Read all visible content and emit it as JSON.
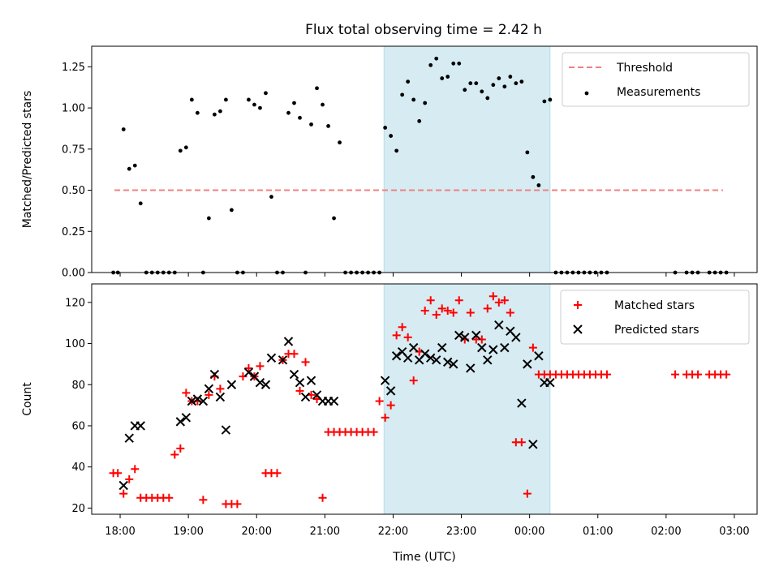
{
  "chart_data": [
    {
      "type": "scatter",
      "title": "Flux total observing time = 2.42 h",
      "xlabel": "",
      "ylabel": "Matched/Predicted stars",
      "xlim": [
        "17:35",
        "03:20"
      ],
      "ylim": [
        0,
        1.375
      ],
      "yticks": [
        "0.00",
        "0.25",
        "0.50",
        "0.75",
        "1.00",
        "1.25"
      ],
      "highlight_span": {
        "from": "21:52",
        "to": "00:18",
        "color": "#add8e6"
      },
      "legend_position": "upper right",
      "series": [
        {
          "name": "Threshold",
          "style": "dashed-line",
          "color": "#f08080",
          "x": [
            "17:55",
            "02:50"
          ],
          "y": [
            0.5,
            0.5
          ]
        },
        {
          "name": "Measurements",
          "style": "dot",
          "color": "#000000",
          "x": [
            "17:54",
            "17:58",
            "18:03",
            "18:08",
            "18:13",
            "18:18",
            "18:23",
            "18:28",
            "18:33",
            "18:38",
            "18:43",
            "18:48",
            "18:53",
            "18:58",
            "19:03",
            "19:08",
            "19:13",
            "19:18",
            "19:23",
            "19:28",
            "19:33",
            "19:38",
            "19:43",
            "19:48",
            "19:53",
            "19:58",
            "20:03",
            "20:08",
            "20:13",
            "20:18",
            "20:23",
            "20:28",
            "20:33",
            "20:38",
            "20:43",
            "20:48",
            "20:53",
            "20:58",
            "21:03",
            "21:08",
            "21:13",
            "21:18",
            "21:23",
            "21:28",
            "21:33",
            "21:38",
            "21:43",
            "21:48",
            "21:53",
            "21:58",
            "22:03",
            "22:08",
            "22:13",
            "22:18",
            "22:23",
            "22:28",
            "22:33",
            "22:38",
            "22:43",
            "22:48",
            "22:53",
            "22:58",
            "23:03",
            "23:08",
            "23:13",
            "23:18",
            "23:23",
            "23:28",
            "23:33",
            "23:38",
            "23:43",
            "23:48",
            "23:53",
            "23:58",
            "00:03",
            "00:08",
            "00:13",
            "00:18",
            "00:23",
            "00:28",
            "00:33",
            "00:38",
            "00:43",
            "00:48",
            "00:53",
            "00:58",
            "01:03",
            "01:08",
            "02:08",
            "02:18",
            "02:23",
            "02:28",
            "02:38",
            "02:43",
            "02:48",
            "02:53"
          ],
          "y": [
            0,
            0,
            0.87,
            0.63,
            0.65,
            0.42,
            0,
            0,
            0,
            0,
            0,
            0,
            0.74,
            0.76,
            1.05,
            0.97,
            0,
            0.33,
            0.96,
            0.98,
            1.05,
            0.38,
            0,
            0,
            1.05,
            1.02,
            1.0,
            1.09,
            0.46,
            0,
            0,
            0.97,
            1.03,
            0.94,
            0,
            0.9,
            1.12,
            1.02,
            0.89,
            0.33,
            0.79,
            0,
            0,
            0,
            0,
            0,
            0,
            0,
            0.88,
            0.83,
            0.74,
            1.08,
            1.16,
            1.05,
            0.92,
            1.03,
            1.26,
            1.3,
            1.18,
            1.19,
            1.27,
            1.27,
            1.11,
            1.15,
            1.15,
            1.1,
            1.06,
            1.14,
            1.18,
            1.13,
            1.19,
            1.15,
            1.16,
            0.73,
            0.58,
            0.53,
            1.04,
            1.05,
            0,
            0,
            0,
            0,
            0,
            0,
            0,
            0,
            0,
            0,
            0,
            0,
            0,
            0,
            0,
            0,
            0,
            0
          ]
        }
      ]
    },
    {
      "type": "scatter",
      "title": "",
      "xlabel": "Time (UTC)",
      "ylabel": "Count",
      "xlim": [
        "17:35",
        "03:20"
      ],
      "ylim": [
        17,
        129
      ],
      "yticks": [
        "20",
        "40",
        "60",
        "80",
        "100",
        "120"
      ],
      "xticks": [
        "18:00",
        "19:00",
        "20:00",
        "21:00",
        "22:00",
        "23:00",
        "00:00",
        "01:00",
        "02:00",
        "03:00"
      ],
      "highlight_span": {
        "from": "21:52",
        "to": "00:18",
        "color": "#add8e6"
      },
      "legend_position": "upper right",
      "series": [
        {
          "name": "Matched stars",
          "marker": "plus",
          "color": "#ff0000",
          "x": [
            "17:54",
            "17:58",
            "18:03",
            "18:08",
            "18:13",
            "18:18",
            "18:23",
            "18:28",
            "18:33",
            "18:38",
            "18:43",
            "18:48",
            "18:53",
            "18:58",
            "19:03",
            "19:08",
            "19:13",
            "19:18",
            "19:23",
            "19:28",
            "19:33",
            "19:38",
            "19:43",
            "19:48",
            "19:53",
            "19:58",
            "20:03",
            "20:08",
            "20:13",
            "20:18",
            "20:23",
            "20:28",
            "20:33",
            "20:38",
            "20:43",
            "20:48",
            "20:53",
            "20:58",
            "21:03",
            "21:08",
            "21:13",
            "21:18",
            "21:23",
            "21:28",
            "21:33",
            "21:38",
            "21:43",
            "21:48",
            "21:53",
            "21:58",
            "22:03",
            "22:08",
            "22:13",
            "22:18",
            "22:23",
            "22:28",
            "22:33",
            "22:38",
            "22:43",
            "22:48",
            "22:53",
            "22:58",
            "23:03",
            "23:08",
            "23:13",
            "23:18",
            "23:23",
            "23:28",
            "23:33",
            "23:38",
            "23:43",
            "23:48",
            "23:53",
            "23:58",
            "00:03",
            "00:08",
            "00:13",
            "00:18",
            "00:23",
            "00:28",
            "00:33",
            "00:38",
            "00:43",
            "00:48",
            "00:53",
            "00:58",
            "01:03",
            "01:08",
            "02:08",
            "02:18",
            "02:23",
            "02:28",
            "02:38",
            "02:43",
            "02:48",
            "02:53"
          ],
          "y": [
            37,
            37,
            27,
            34,
            39,
            25,
            25,
            25,
            25,
            25,
            25,
            46,
            49,
            76,
            72,
            72,
            24,
            75,
            84,
            78,
            22,
            22,
            22,
            84,
            88,
            84,
            89,
            37,
            37,
            37,
            92,
            95,
            95,
            77,
            91,
            75,
            73,
            25,
            57,
            57,
            57,
            57,
            57,
            57,
            57,
            57,
            57,
            72,
            64,
            70,
            104,
            108,
            103,
            82,
            96,
            116,
            121,
            114,
            117,
            116,
            115,
            121,
            102,
            115,
            102,
            102,
            117,
            123,
            120,
            121,
            115,
            52,
            52,
            27,
            98,
            85,
            85,
            85,
            85,
            85,
            85,
            85,
            85,
            85,
            85,
            85,
            85,
            85,
            85,
            85,
            85,
            85,
            85,
            85,
            85,
            85
          ]
        },
        {
          "name": "Predicted stars",
          "marker": "x",
          "color": "#000000",
          "x": [
            "18:03",
            "18:08",
            "18:13",
            "18:18",
            "18:58",
            "19:03",
            "18:53",
            "19:08",
            "19:13",
            "19:18",
            "19:23",
            "19:28",
            "19:33",
            "19:38",
            "19:53",
            "19:58",
            "20:03",
            "20:08",
            "20:13",
            "20:23",
            "20:28",
            "20:33",
            "20:38",
            "20:43",
            "20:48",
            "20:53",
            "20:58",
            "21:03",
            "21:08",
            "21:53",
            "21:58",
            "22:03",
            "22:08",
            "22:13",
            "22:18",
            "22:23",
            "22:28",
            "22:33",
            "22:38",
            "22:43",
            "22:48",
            "22:53",
            "22:58",
            "23:03",
            "23:08",
            "23:13",
            "23:18",
            "23:23",
            "23:28",
            "23:33",
            "23:38",
            "23:43",
            "23:48",
            "23:53",
            "23:58",
            "00:03",
            "00:08",
            "00:13",
            "00:18"
          ],
          "y": [
            31,
            54,
            60,
            60,
            64,
            72,
            62,
            73,
            72,
            78,
            85,
            74,
            58,
            80,
            86,
            84,
            81,
            80,
            93,
            92,
            101,
            85,
            81,
            74,
            82,
            75,
            72,
            72,
            72,
            82,
            77,
            94,
            96,
            93,
            98,
            92,
            95,
            93,
            92,
            98,
            91,
            90,
            104,
            103,
            88,
            104,
            98,
            92,
            97,
            109,
            98,
            106,
            103,
            71,
            90,
            51,
            94,
            81,
            81
          ]
        }
      ]
    }
  ]
}
